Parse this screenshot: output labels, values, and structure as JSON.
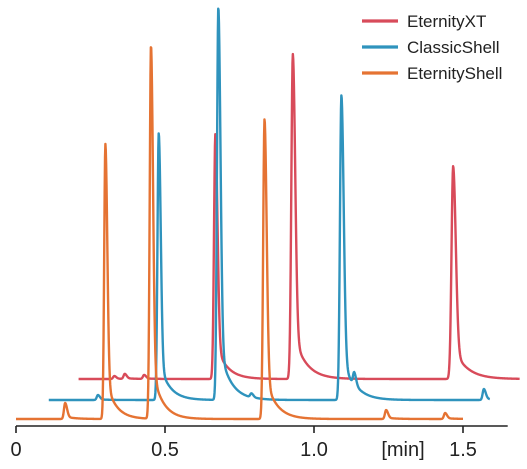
{
  "chart_data": {
    "type": "line",
    "title": "",
    "xlabel": "[min]",
    "ylabel": "",
    "xlim": [
      0,
      1.65
    ],
    "x_ticks": [
      {
        "value": 0,
        "label": "0"
      },
      {
        "value": 0.5,
        "label": "0.5"
      },
      {
        "value": 1.0,
        "label": "1.0"
      },
      {
        "value": 1.5,
        "label": "1.5"
      }
    ],
    "grid": false,
    "legend_position": "top-right",
    "series": [
      {
        "name": "EternityXT",
        "color": "#d84b5a",
        "x_range": [
          0.21,
          1.69
        ],
        "baseline": 0,
        "peaks": [
          {
            "t": 0.33,
            "h": 3,
            "w": 0.004
          },
          {
            "t": 0.365,
            "h": 5,
            "w": 0.004
          },
          {
            "t": 0.43,
            "h": 4,
            "w": 0.004
          },
          {
            "t": 0.669,
            "h": 245,
            "w": 0.0045
          },
          {
            "t": 0.929,
            "h": 325,
            "w": 0.005
          },
          {
            "t": 1.467,
            "h": 213,
            "w": 0.0055
          }
        ]
      },
      {
        "name": "ClassicShell",
        "color": "#2f93bd",
        "x_range": [
          0.11,
          1.59
        ],
        "baseline": 0,
        "peaks": [
          {
            "t": 0.275,
            "h": 5,
            "w": 0.004
          },
          {
            "t": 0.479,
            "h": 267,
            "w": 0.0042
          },
          {
            "t": 0.679,
            "h": 393,
            "w": 0.0045
          },
          {
            "t": 0.79,
            "h": 4,
            "w": 0.004
          },
          {
            "t": 1.092,
            "h": 305,
            "w": 0.0048
          },
          {
            "t": 1.135,
            "h": 13,
            "w": 0.004
          },
          {
            "t": 1.57,
            "h": 11,
            "w": 0.004
          }
        ]
      },
      {
        "name": "EternityShell",
        "color": "#e57333",
        "x_range": [
          0.0,
          1.5
        ],
        "baseline": 0,
        "peaks": [
          {
            "t": 0.165,
            "h": 16,
            "w": 0.004
          },
          {
            "t": 0.3,
            "h": 275,
            "w": 0.004
          },
          {
            "t": 0.453,
            "h": 374,
            "w": 0.0042
          },
          {
            "t": 0.834,
            "h": 300,
            "w": 0.0045
          },
          {
            "t": 1.242,
            "h": 9,
            "w": 0.004
          },
          {
            "t": 1.44,
            "h": 6,
            "w": 0.004
          }
        ]
      }
    ]
  }
}
